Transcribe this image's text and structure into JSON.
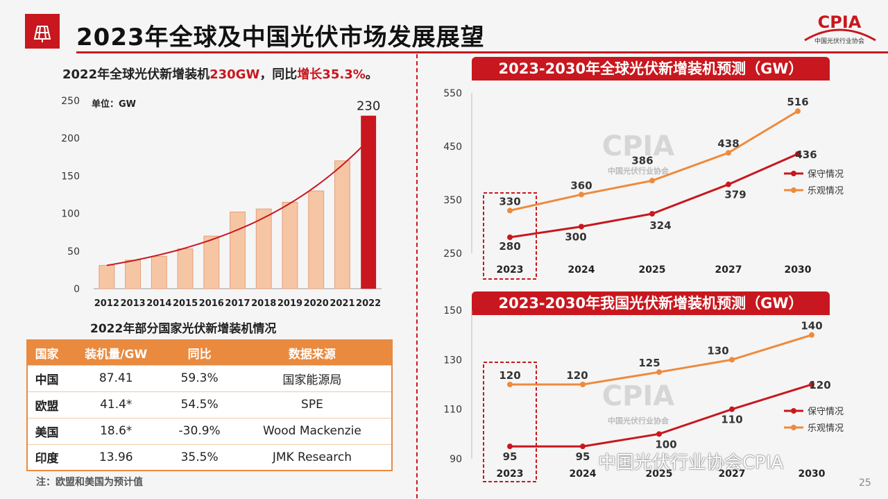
{
  "title": "2023年全球及中国光伏市场发展展望",
  "logo_text": "CPIA",
  "logo_subtext": "中国光伏行业协会",
  "left": {
    "headline_a": "2022年全球光伏新增装机",
    "headline_b": "230GW",
    "headline_c": "，同比",
    "headline_d": "增长35.3%",
    "headline_e": "。",
    "unit": "单位：GW"
  },
  "table": {
    "title": "2022年部分国家光伏新增装机情况",
    "headers": [
      "国家",
      "装机量/GW",
      "同比",
      "数据来源"
    ],
    "rows": [
      [
        "中国",
        "87.41",
        "59.3%",
        "国家能源局"
      ],
      [
        "欧盟",
        "41.4*",
        "54.5%",
        "SPE"
      ],
      [
        "美国",
        "18.6*",
        "-30.9%",
        "Wood Mackenzie"
      ],
      [
        "印度",
        "13.96",
        "35.5%",
        "JMK Research"
      ]
    ],
    "note": "注：欧盟和美国为预计值"
  },
  "global_banner": "2023-2030年全球光伏新增装机预测（GW）",
  "china_banner": "2023-2030年我国光伏新增装机预测（GW）",
  "watermark": "中国光伏行业协会CPIA",
  "page_number": "25",
  "chart_data": [
    {
      "type": "bar",
      "categories": [
        "2012",
        "2013",
        "2014",
        "2015",
        "2016",
        "2017",
        "2018",
        "2019",
        "2020",
        "2021",
        "2022"
      ],
      "values": [
        31,
        38,
        43,
        53,
        70,
        102,
        106,
        115,
        130,
        170,
        230
      ],
      "data_labels": {
        "2022": "230"
      },
      "ylim": [
        0,
        250
      ],
      "yticks": [
        0,
        50,
        100,
        150,
        200,
        250
      ],
      "trendline": true,
      "colors": {
        "bar": "#f6c6a4",
        "bar_highlight": "#c8171e",
        "trend": "#c8171e"
      }
    },
    {
      "type": "line",
      "categories": [
        "2023",
        "2024",
        "2025",
        "2027",
        "2030"
      ],
      "series": [
        {
          "name": "保守情况",
          "values": [
            280,
            300,
            324,
            379,
            436
          ],
          "color": "#c8171e"
        },
        {
          "name": "乐观情况",
          "values": [
            330,
            360,
            386,
            438,
            516
          ],
          "color": "#ee8a3c"
        }
      ],
      "ylim": [
        250,
        550
      ],
      "yticks": [
        250,
        350,
        450,
        550
      ],
      "legend": "right"
    },
    {
      "type": "line",
      "categories": [
        "2023",
        "2024",
        "2025",
        "2027",
        "2030"
      ],
      "series": [
        {
          "name": "保守情况",
          "values": [
            95,
            95,
            100,
            110,
            120
          ],
          "color": "#c8171e"
        },
        {
          "name": "乐观情况",
          "values": [
            120,
            120,
            125,
            130,
            140
          ],
          "color": "#ee8a3c"
        }
      ],
      "ylim": [
        90,
        150
      ],
      "yticks": [
        90,
        110,
        130,
        150
      ],
      "legend": "right"
    }
  ]
}
